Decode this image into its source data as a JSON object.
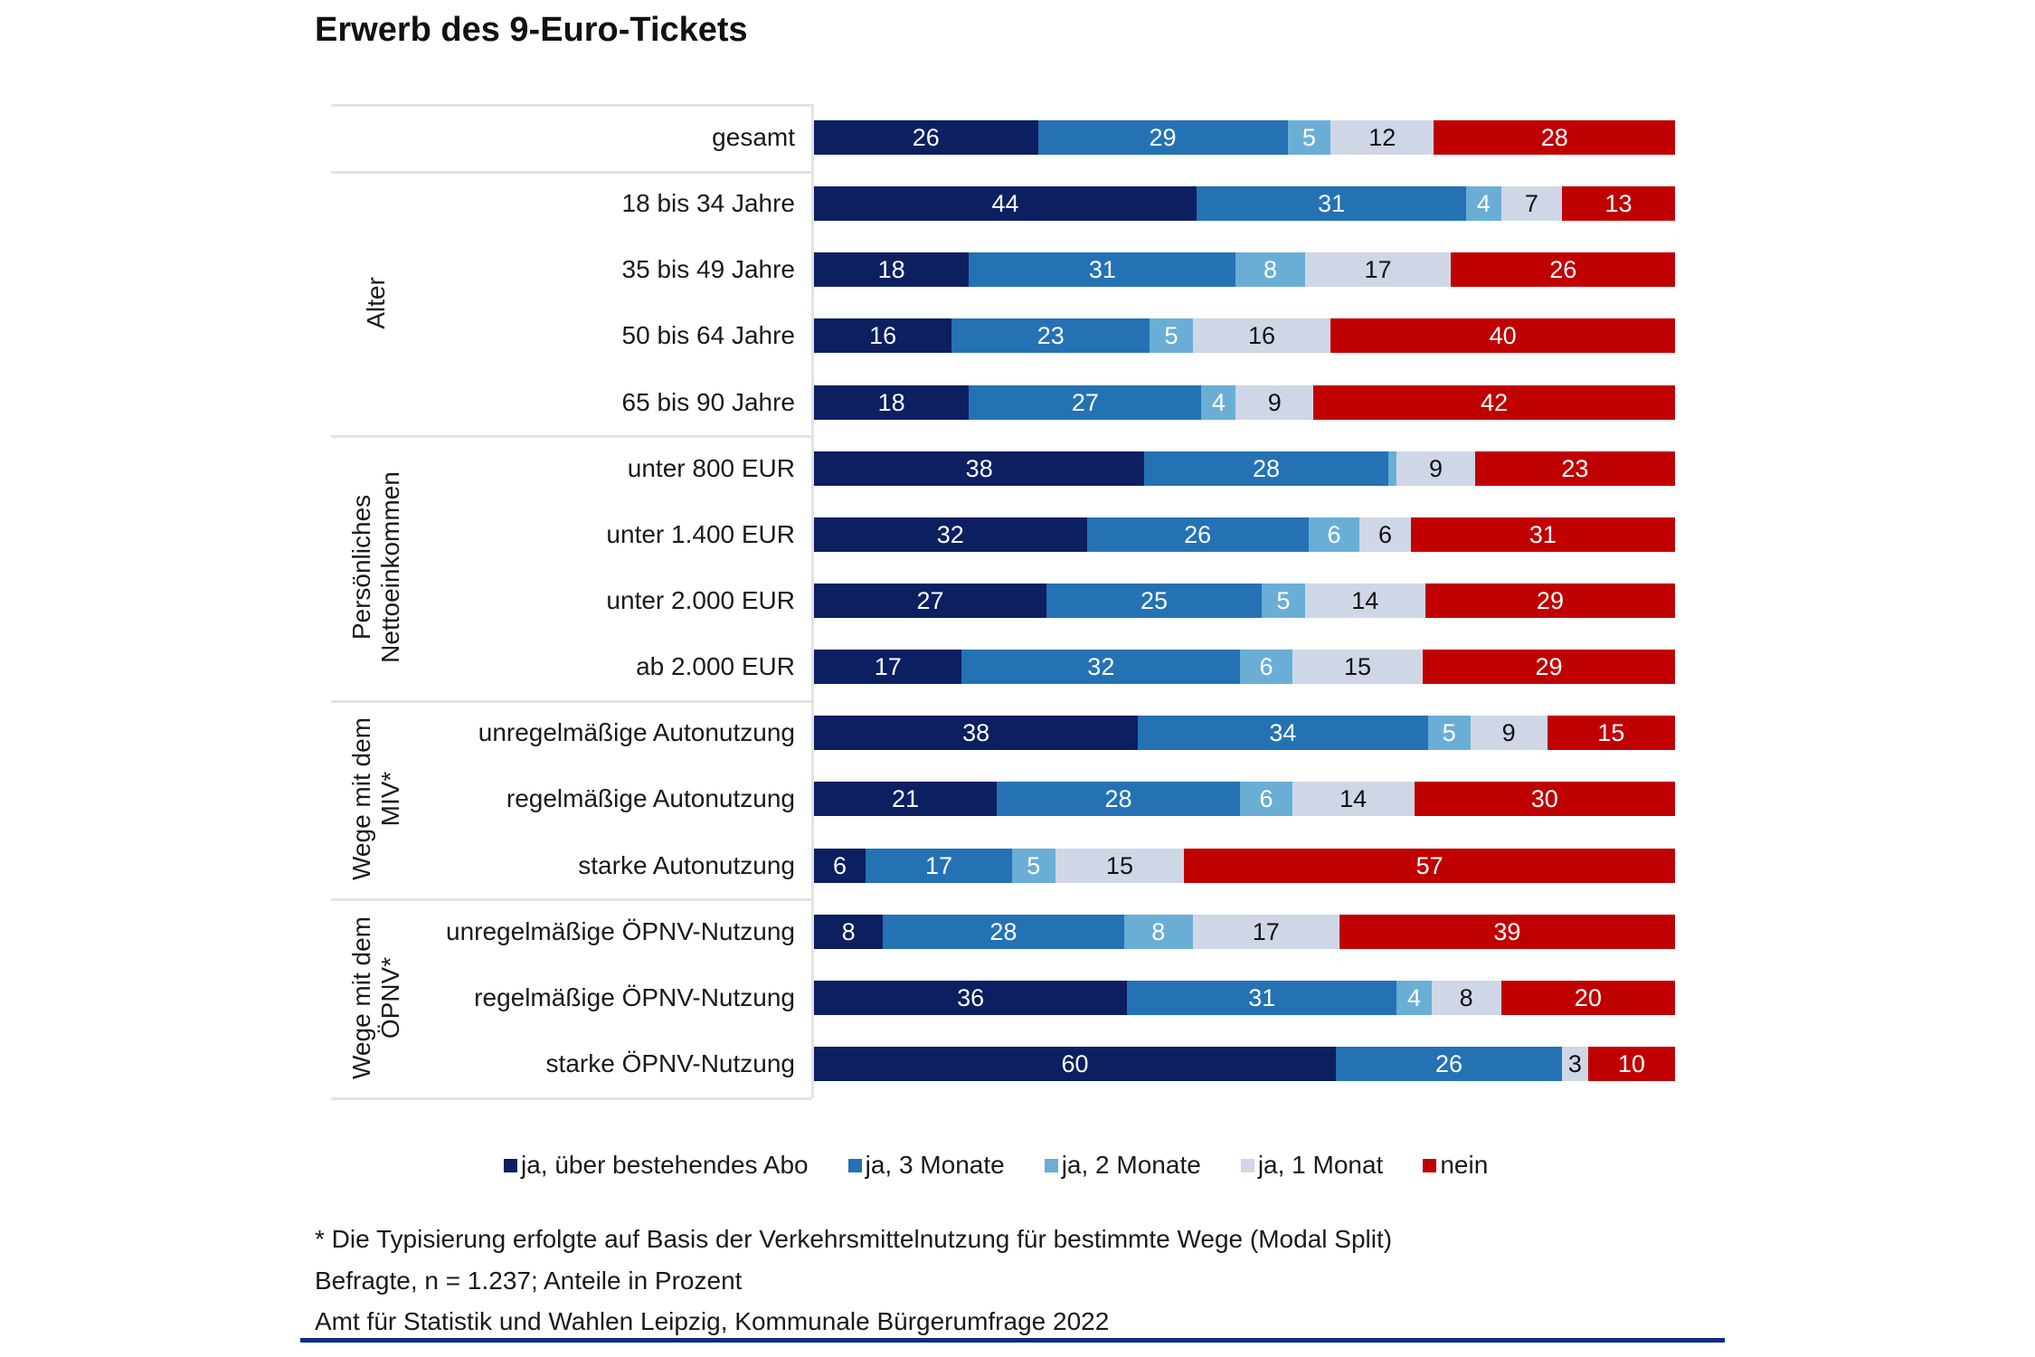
{
  "title": "Erwerb des 9-Euro-Tickets",
  "chart_data": {
    "type": "bar",
    "orientation": "horizontal-stacked-100",
    "title": "Erwerb des 9-Euro-Tickets",
    "xlabel": "",
    "ylabel": "",
    "xlim": [
      0,
      100
    ],
    "grid": false,
    "legend_position": "bottom",
    "series": [
      {
        "name": "ja, über bestehendes Abo",
        "color": "#0b1f61"
      },
      {
        "name": "ja, 3 Monate",
        "color": "#2472b4"
      },
      {
        "name": "ja, 2 Monate",
        "color": "#6aaed6"
      },
      {
        "name": "ja, 1 Monat",
        "color": "#cfd7e6"
      },
      {
        "name": "nein",
        "color": "#c00000"
      }
    ],
    "groups": [
      {
        "label": "",
        "rows": [
          {
            "label": "gesamt",
            "values": [
              26,
              29,
              5,
              12,
              28
            ]
          }
        ]
      },
      {
        "label": "Alter",
        "rows": [
          {
            "label": "18 bis 34 Jahre",
            "values": [
              44,
              31,
              4,
              7,
              13
            ]
          },
          {
            "label": "35 bis 49 Jahre",
            "values": [
              18,
              31,
              8,
              17,
              26
            ]
          },
          {
            "label": "50 bis 64 Jahre",
            "values": [
              16,
              23,
              5,
              16,
              40
            ]
          },
          {
            "label": "65 bis 90 Jahre",
            "values": [
              18,
              27,
              4,
              9,
              42
            ]
          }
        ]
      },
      {
        "label": "Persönliches Nettoeinkommen",
        "label_lines": [
          "Persönliches",
          "Nettoeinkommen"
        ],
        "rows": [
          {
            "label": "unter 800 EUR",
            "values": [
              38,
              28,
              1,
              9,
              23
            ],
            "hidden_labels": [
              2
            ]
          },
          {
            "label": "unter 1.400 EUR",
            "values": [
              32,
              26,
              6,
              6,
              31
            ]
          },
          {
            "label": "unter 2.000 EUR",
            "values": [
              27,
              25,
              5,
              14,
              29
            ]
          },
          {
            "label": "ab 2.000 EUR",
            "values": [
              17,
              32,
              6,
              15,
              29
            ]
          }
        ]
      },
      {
        "label": "Wege mit dem MIV*",
        "label_lines": [
          "Wege mit dem",
          "MIV*"
        ],
        "rows": [
          {
            "label": "unregelmäßige Autonutzung",
            "values": [
              38,
              34,
              5,
              9,
              15
            ]
          },
          {
            "label": "regelmäßige Autonutzung",
            "values": [
              21,
              28,
              6,
              14,
              30
            ]
          },
          {
            "label": "starke Autonutzung",
            "values": [
              6,
              17,
              5,
              15,
              57
            ]
          }
        ]
      },
      {
        "label": "Wege mit dem ÖPNV*",
        "label_lines": [
          "Wege mit dem",
          "ÖPNV*"
        ],
        "rows": [
          {
            "label": "unregelmäßige ÖPNV-Nutzung",
            "values": [
              8,
              28,
              8,
              17,
              39
            ]
          },
          {
            "label": "regelmäßige ÖPNV-Nutzung",
            "values": [
              36,
              31,
              4,
              8,
              20
            ]
          },
          {
            "label": "starke ÖPNV-Nutzung",
            "values": [
              60,
              26,
              0,
              3,
              10
            ],
            "hidden_labels": [
              2
            ]
          }
        ]
      }
    ]
  },
  "legend": [
    "ja, über bestehendes Abo",
    "ja, 3 Monate",
    "ja, 2 Monate",
    "ja, 1 Monat",
    "nein"
  ],
  "footnotes": [
    "* Die Typisierung erfolgte auf Basis der Verkehrsmittelnutzung für bestimmte Wege (Modal Split)",
    "Befragte, n = 1.237; Anteile in Prozent",
    "Amt für Statistik und Wahlen Leipzig, Kommunale Bürgerumfrage 2022"
  ]
}
